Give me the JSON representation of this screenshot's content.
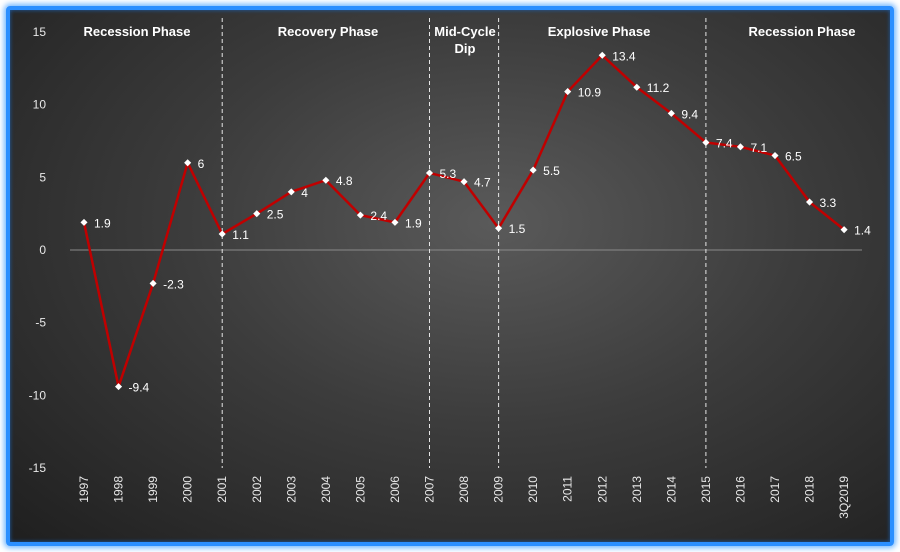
{
  "chart_data": {
    "type": "line",
    "categories": [
      "1997",
      "1998",
      "1999",
      "2000",
      "2001",
      "2002",
      "2003",
      "2004",
      "2005",
      "2006",
      "2007",
      "2008",
      "2009",
      "2010",
      "2011",
      "2012",
      "2013",
      "2014",
      "2015",
      "2016",
      "2017",
      "2018",
      "3Q2019"
    ],
    "values": [
      1.9,
      -9.4,
      -2.3,
      6,
      1.1,
      2.5,
      4,
      4.8,
      2.4,
      1.9,
      5.3,
      4.7,
      1.5,
      5.5,
      10.9,
      13.4,
      11.2,
      9.4,
      7.4,
      7.1,
      6.5,
      3.3,
      1.4
    ],
    "data_labels": [
      "1.9",
      "-9.4",
      "-2.3",
      "6",
      "1.1",
      "2.5",
      "4",
      "4.8",
      "2.4",
      "1.9",
      "5.3",
      "4.7",
      "1.5",
      "5.5",
      "10.9",
      "13.4",
      "11.2",
      "9.4",
      "7.4",
      "7.1",
      "6.5",
      "3.3",
      "1.4"
    ],
    "ylim": [
      -15,
      15
    ],
    "yticks": [
      "-15",
      "-10",
      "-5",
      "0",
      "5",
      "10",
      "15"
    ],
    "line_color": "#c00000",
    "marker_color": "#ffffff",
    "phases": [
      {
        "label": "Recession Phase"
      },
      {
        "label": "Recovery Phase"
      },
      {
        "label": "Mid-Cycle",
        "label2": "Dip"
      },
      {
        "label": "Explosive Phase"
      },
      {
        "label": "Recession Phase"
      }
    ],
    "divider_categories": [
      "2001",
      "2007",
      "2009",
      "2015"
    ],
    "grid": false
  }
}
